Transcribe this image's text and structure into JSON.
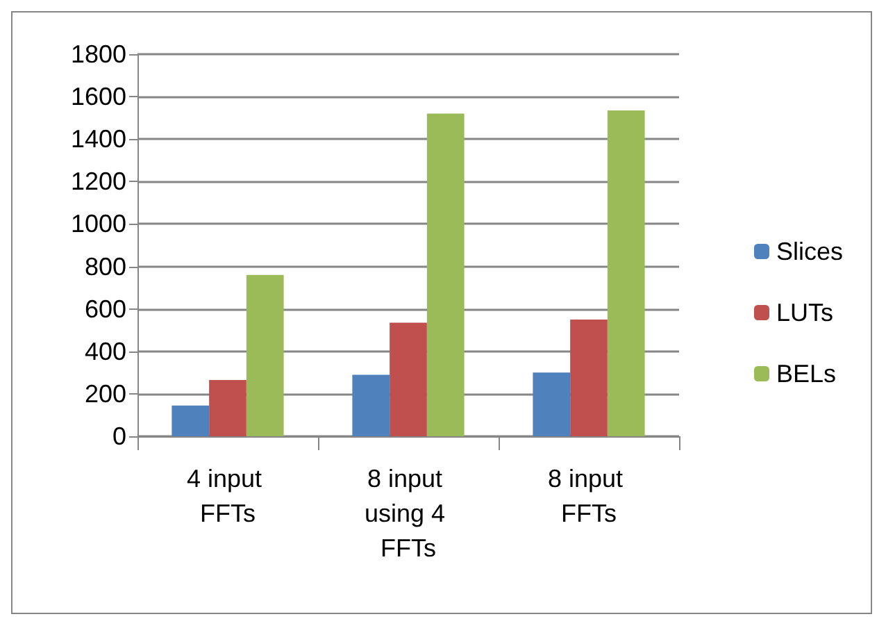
{
  "chart_data": {
    "type": "bar",
    "categories": [
      "4 input FFTs",
      "8 input using 4 FFTs",
      "8 input FFTs"
    ],
    "series": [
      {
        "name": "Slices",
        "color": "#4f81bd",
        "values": [
          145,
          290,
          300
        ]
      },
      {
        "name": "LUTs",
        "color": "#c0504d",
        "values": [
          265,
          535,
          550
        ]
      },
      {
        "name": "BELs",
        "color": "#9bbb59",
        "values": [
          760,
          1520,
          1535
        ]
      }
    ],
    "ylim": [
      0,
      1800
    ],
    "yticks": [
      0,
      200,
      400,
      600,
      800,
      1000,
      1200,
      1400,
      1600,
      1800
    ],
    "grid": "y",
    "legend": "right"
  }
}
